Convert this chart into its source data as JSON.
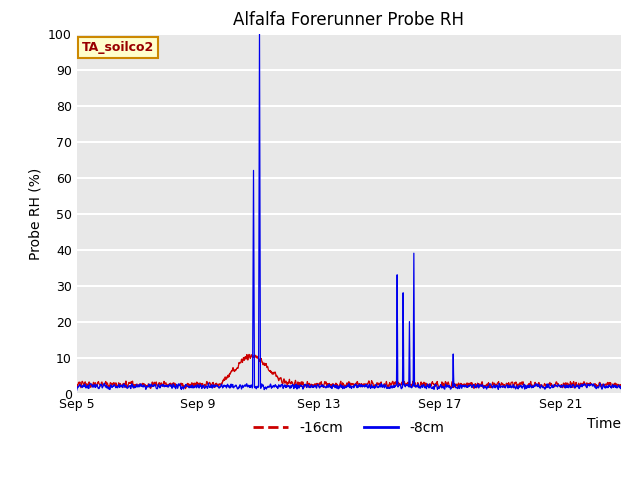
{
  "title": "Alfalfa Forerunner Probe RH",
  "ylabel": "Probe RH (%)",
  "xlabel": "Time",
  "ylim": [
    0,
    100
  ],
  "plot_bg_color": "#e8e8e8",
  "grid_color": "#ffffff",
  "line_red_color": "#cc0000",
  "line_blue_color": "#0000ee",
  "legend_label_red": "-16cm",
  "legend_label_blue": "-8cm",
  "annotation_text": "TA_soilco2",
  "annotation_box_color": "#ffffcc",
  "annotation_border_color": "#cc8800",
  "annotation_text_color": "#990000",
  "x_tick_labels": [
    "Sep 5",
    "Sep 9",
    "Sep 13",
    "Sep 17",
    "Sep 21"
  ],
  "x_tick_positions": [
    0,
    4,
    8,
    12,
    16
  ],
  "title_fontsize": 12,
  "axis_label_fontsize": 10,
  "n_days": 18,
  "xlim": [
    0,
    18
  ]
}
